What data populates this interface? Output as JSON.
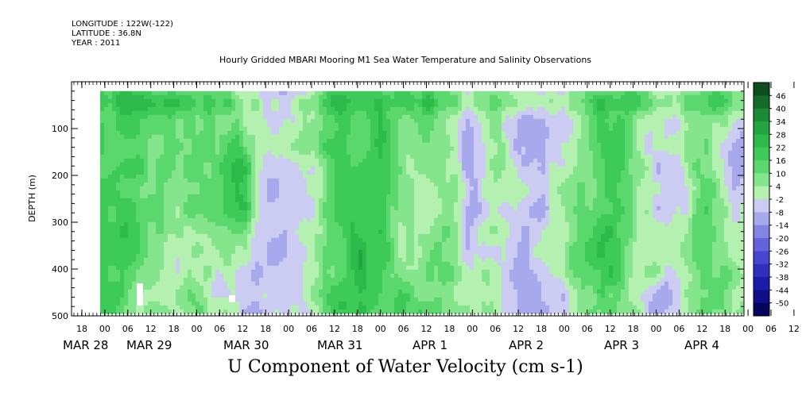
{
  "header": {
    "longitude": "LONGITUDE : 122W(-122)",
    "latitude": "LATITUDE : 36.8N",
    "year": "YEAR : 2011"
  },
  "chart_data": {
    "type": "heatmap",
    "title": "Hourly Gridded MBARI Mooring M1 Sea Water Temperature and Salinity Observations",
    "footer_title": "U Component of Water Velocity (cm s-1)",
    "ylabel": "DEPTH (m)",
    "ylim": [
      500,
      0
    ],
    "y_ticks": [
      100,
      200,
      300,
      400,
      500
    ],
    "x_hour_ticks": [
      "18",
      "00",
      "06",
      "12",
      "18",
      "00",
      "06",
      "12",
      "18",
      "00",
      "06",
      "12",
      "18",
      "00",
      "06",
      "12",
      "18",
      "00",
      "06",
      "12",
      "18",
      "00",
      "06",
      "12",
      "18",
      "00",
      "06",
      "12",
      "18",
      "00",
      "06",
      "12"
    ],
    "x_day_labels": [
      "MAR 28",
      "MAR 29",
      "MAR 30",
      "MAR 31",
      "APR 1",
      "APR 2",
      "APR 3",
      "APR 4"
    ],
    "colorbar_levels": [
      48,
      46,
      40,
      34,
      28,
      22,
      16,
      10,
      4,
      -2,
      -8,
      -14,
      -20,
      -26,
      -32,
      -38,
      -44,
      -50
    ],
    "colorbar_labels": [
      "46",
      "40",
      "34",
      "28",
      "22",
      "16",
      "10",
      "4",
      "-2",
      "-8",
      "-14",
      "-20",
      "-26",
      "-32",
      "-38",
      "-44",
      "-50"
    ],
    "data_depth_range": [
      20,
      490
    ],
    "description_values": "Velocity field dominated by values between -14 and 22 cm/s; strongest positive near MAR 30 06-12 at ~230 m"
  }
}
